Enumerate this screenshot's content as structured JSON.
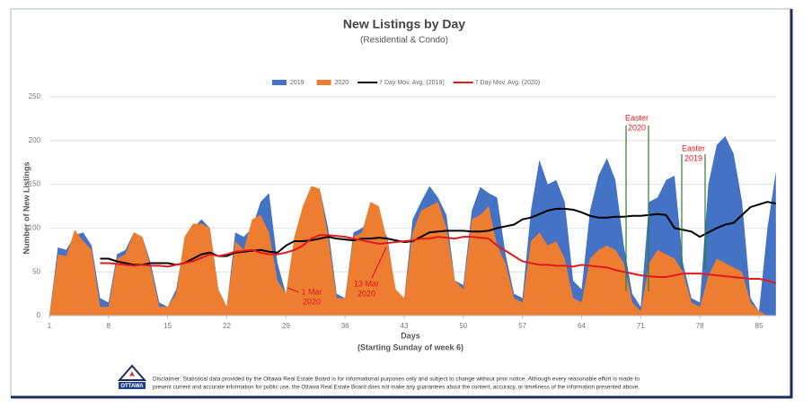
{
  "chart_data": {
    "type": "area",
    "title": "New Listings by Day",
    "subtitle": "(Residential & Condo)",
    "x_label": "Days",
    "x_sublabel": "(Starting Sunday of week 6)",
    "y_label": "Number of New Listings",
    "x": [
      1,
      2,
      3,
      4,
      5,
      6,
      7,
      8,
      9,
      10,
      11,
      12,
      13,
      14,
      15,
      16,
      17,
      18,
      19,
      20,
      21,
      22,
      23,
      24,
      25,
      26,
      27,
      28,
      29,
      30,
      31,
      32,
      33,
      34,
      35,
      36,
      37,
      38,
      39,
      40,
      41,
      42,
      43,
      44,
      45,
      46,
      47,
      48,
      49,
      50,
      51,
      52,
      53,
      54,
      55,
      56,
      57,
      58,
      59,
      60,
      61,
      62,
      63,
      64,
      65,
      66,
      67,
      68,
      69,
      70,
      71,
      72,
      73,
      74,
      75,
      76,
      77,
      78,
      79,
      80,
      81,
      82,
      83,
      84,
      85,
      86,
      87
    ],
    "xlim": [
      1,
      87
    ],
    "xticks": [
      1,
      8,
      15,
      22,
      29,
      36,
      43,
      50,
      57,
      64,
      71,
      78,
      85
    ],
    "ylim": [
      0,
      250
    ],
    "yticks": [
      0,
      50,
      100,
      150,
      200,
      250
    ],
    "grid": true,
    "legend": "top",
    "series": [
      {
        "name": "2019",
        "type": "area",
        "color": "#4472c4",
        "values": [
          0,
          78,
          75,
          92,
          95,
          80,
          20,
          15,
          70,
          75,
          95,
          90,
          60,
          15,
          10,
          30,
          85,
          100,
          110,
          100,
          30,
          10,
          95,
          90,
          100,
          130,
          140,
          60,
          25,
          85,
          120,
          145,
          145,
          100,
          25,
          20,
          95,
          100,
          110,
          105,
          90,
          25,
          20,
          110,
          130,
          148,
          135,
          115,
          40,
          35,
          120,
          147,
          140,
          135,
          70,
          25,
          20,
          120,
          178,
          150,
          155,
          130,
          40,
          30,
          120,
          160,
          180,
          155,
          80,
          25,
          10,
          130,
          135,
          155,
          160,
          60,
          20,
          15,
          150,
          195,
          205,
          185,
          130,
          20,
          5,
          100,
          165
        ]
      },
      {
        "name": "2020",
        "type": "area",
        "color": "#ed7d31",
        "values": [
          0,
          70,
          68,
          98,
          85,
          75,
          10,
          10,
          65,
          70,
          95,
          90,
          55,
          10,
          10,
          25,
          90,
          105,
          105,
          100,
          30,
          10,
          85,
          75,
          110,
          115,
          95,
          40,
          25,
          90,
          125,
          148,
          145,
          90,
          20,
          20,
          90,
          95,
          130,
          125,
          85,
          30,
          20,
          95,
          120,
          125,
          130,
          100,
          40,
          30,
          110,
          115,
          125,
          80,
          60,
          20,
          15,
          85,
          95,
          80,
          85,
          65,
          20,
          15,
          65,
          75,
          80,
          75,
          60,
          15,
          5,
          60,
          75,
          70,
          65,
          50,
          15,
          10,
          45,
          65,
          60,
          55,
          50,
          15,
          5,
          0,
          0
        ]
      },
      {
        "name": "7 Day Mov. Avg. (2019)",
        "type": "line",
        "color": "#000000",
        "values": [
          null,
          null,
          null,
          null,
          null,
          null,
          65,
          65,
          62,
          60,
          58,
          58,
          60,
          60,
          60,
          58,
          60,
          65,
          70,
          72,
          68,
          68,
          72,
          73,
          74,
          75,
          73,
          72,
          80,
          85,
          85,
          86,
          88,
          90,
          88,
          87,
          86,
          88,
          88,
          89,
          88,
          86,
          84,
          85,
          90,
          95,
          96,
          97,
          97,
          97,
          96,
          96,
          97,
          100,
          102,
          104,
          110,
          112,
          116,
          120,
          122,
          122,
          121,
          118,
          114,
          112,
          112,
          113,
          113,
          114,
          114,
          115,
          116,
          115,
          100,
          98,
          96,
          90,
          95,
          100,
          104,
          106,
          115,
          124,
          127,
          130,
          128
        ]
      },
      {
        "name": "7 Day Mov. Avg. (2020)",
        "type": "line",
        "color": "#e31a1c",
        "values": [
          null,
          null,
          null,
          null,
          null,
          null,
          60,
          60,
          59,
          58,
          57,
          58,
          57,
          57,
          56,
          58,
          60,
          62,
          66,
          70,
          68,
          70,
          73,
          74,
          75,
          72,
          70,
          70,
          72,
          75,
          80,
          88,
          92,
          92,
          91,
          90,
          88,
          86,
          84,
          82,
          83,
          84,
          85,
          86,
          88,
          88,
          90,
          89,
          88,
          90,
          90,
          89,
          88,
          80,
          74,
          68,
          62,
          60,
          58,
          58,
          57,
          57,
          56,
          58,
          57,
          56,
          55,
          52,
          50,
          48,
          46,
          45,
          44,
          44,
          46,
          48,
          48,
          48,
          47,
          46,
          45,
          44,
          43,
          42,
          42,
          40,
          37
        ]
      }
    ],
    "annotations": [
      {
        "text": [
          "Easter",
          "2020"
        ]
      },
      {
        "text": [
          "Easter",
          "2019"
        ]
      },
      {
        "text": [
          "1 Mar",
          "2020"
        ]
      },
      {
        "text": [
          "13 Mar",
          "2020"
        ]
      }
    ],
    "logo": "OTTAWA",
    "disclaimer": [
      "Disclaimer: Statistical data provided by the Ottawa Real Estate Board is for informational purposes only and subject to change without prior notice. Although every reasonable effort is made to",
      "present current and accurate information for public use, the Ottawa Real Estate Board does not make any guarantees about the content, accuracy, or timeliness of the information presented above."
    ]
  }
}
